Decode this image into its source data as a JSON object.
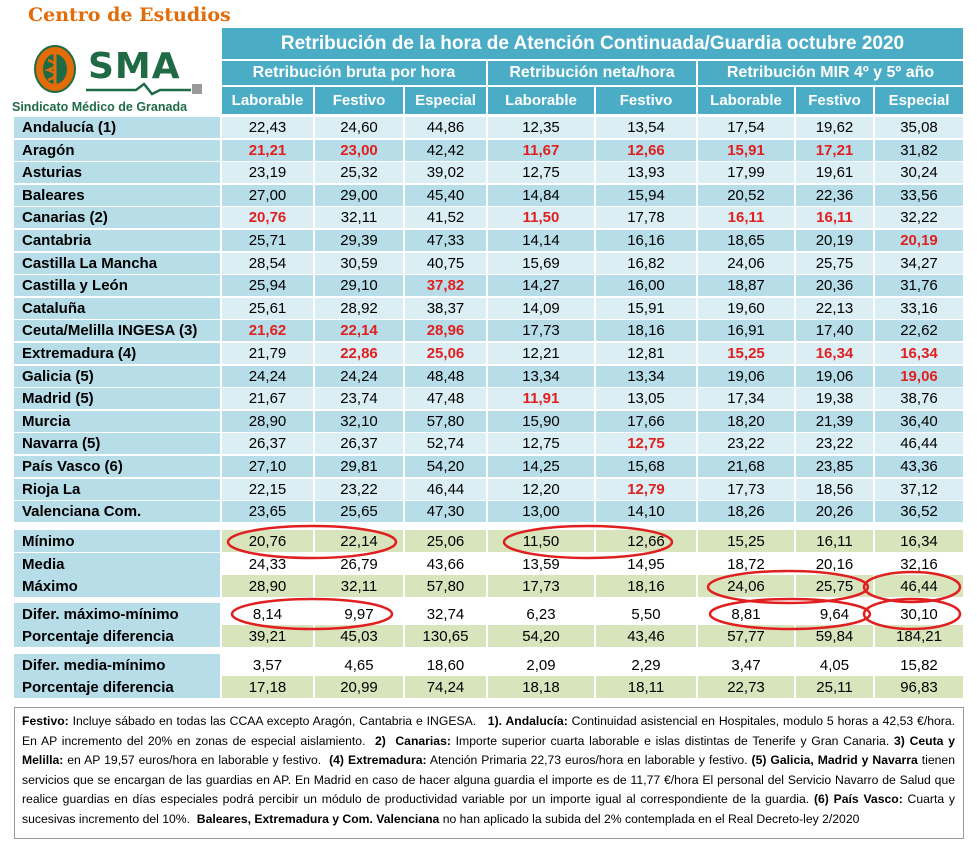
{
  "logo": {
    "title": "Centro de Estudios",
    "acronym": "SMA",
    "subtitle": "Sindicato Médico de Granada"
  },
  "header": {
    "title": "Retribución de la hora de Atención Continuada/Guardia octubre 2020",
    "groups": [
      "Retribución bruta por hora",
      "Retribución neta/hora",
      "Retribución MIR 4º y 5º año"
    ],
    "columns": [
      "Laborable",
      "Festivo",
      "Especial",
      "Laborable",
      "Festivo",
      "Laborable",
      "Festivo",
      "Especial"
    ]
  },
  "rows": [
    {
      "name": "Andalucía (1)",
      "values": [
        "22,43",
        "24,60",
        "44,86",
        "12,35",
        "13,54",
        "17,54",
        "19,62",
        "35,08"
      ],
      "red": []
    },
    {
      "name": "Aragón",
      "values": [
        "21,21",
        "23,00",
        "42,42",
        "11,67",
        "12,66",
        "15,91",
        "17,21",
        "31,82"
      ],
      "red": [
        0,
        1,
        3,
        4,
        5,
        6
      ]
    },
    {
      "name": "Asturias",
      "values": [
        "23,19",
        "25,32",
        "39,02",
        "12,75",
        "13,93",
        "17,99",
        "19,61",
        "30,24"
      ],
      "red": []
    },
    {
      "name": "Baleares",
      "values": [
        "27,00",
        "29,00",
        "45,40",
        "14,84",
        "15,94",
        "20,52",
        "22,36",
        "33,56"
      ],
      "red": []
    },
    {
      "name": "Canarias (2)",
      "values": [
        "20,76",
        "32,11",
        "41,52",
        "11,50",
        "17,78",
        "16,11",
        "16,11",
        "32,22"
      ],
      "red": [
        0,
        3,
        5,
        6
      ]
    },
    {
      "name": "Cantabria",
      "values": [
        "25,71",
        "29,39",
        "47,33",
        "14,14",
        "16,16",
        "18,65",
        "20,19",
        "20,19"
      ],
      "red": [
        7
      ]
    },
    {
      "name": "Castilla La Mancha",
      "values": [
        "28,54",
        "30,59",
        "40,75",
        "15,69",
        "16,82",
        "24,06",
        "25,75",
        "34,27"
      ],
      "red": []
    },
    {
      "name": "Castilla y León",
      "values": [
        "25,94",
        "29,10",
        "37,82",
        "14,27",
        "16,00",
        "18,87",
        "20,36",
        "31,76"
      ],
      "red": [
        2
      ]
    },
    {
      "name": "Cataluña",
      "values": [
        "25,61",
        "28,92",
        "38,37",
        "14,09",
        "15,91",
        "19,60",
        "22,13",
        "33,16"
      ],
      "red": []
    },
    {
      "name": "Ceuta/Melilla INGESA (3)",
      "values": [
        "21,62",
        "22,14",
        "28,96",
        "17,73",
        "18,16",
        "16,91",
        "17,40",
        "22,62"
      ],
      "red": [
        0,
        1,
        2
      ]
    },
    {
      "name": "Extremadura (4)",
      "values": [
        "21,79",
        "22,86",
        "25,06",
        "12,21",
        "12,81",
        "15,25",
        "16,34",
        "16,34"
      ],
      "red": [
        1,
        2,
        5,
        6,
        7
      ]
    },
    {
      "name": "Galicia (5)",
      "values": [
        "24,24",
        "24,24",
        "48,48",
        "13,34",
        "13,34",
        "19,06",
        "19,06",
        "19,06"
      ],
      "red": [
        7
      ]
    },
    {
      "name": "Madrid (5)",
      "values": [
        "21,67",
        "23,74",
        "47,48",
        "11,91",
        "13,05",
        "17,34",
        "19,38",
        "38,76"
      ],
      "red": [
        3
      ]
    },
    {
      "name": "Murcia",
      "values": [
        "28,90",
        "32,10",
        "57,80",
        "15,90",
        "17,66",
        "18,20",
        "21,39",
        "36,40"
      ],
      "red": []
    },
    {
      "name": "Navarra (5)",
      "values": [
        "26,37",
        "26,37",
        "52,74",
        "12,75",
        "12,75",
        "23,22",
        "23,22",
        "46,44"
      ],
      "red": [
        4
      ]
    },
    {
      "name": "País Vasco (6)",
      "values": [
        "27,10",
        "29,81",
        "54,20",
        "14,25",
        "15,68",
        "21,68",
        "23,85",
        "43,36"
      ],
      "red": []
    },
    {
      "name": "Rioja La",
      "values": [
        "22,15",
        "23,22",
        "46,44",
        "12,20",
        "12,79",
        "17,73",
        "18,56",
        "37,12"
      ],
      "red": [
        4
      ]
    },
    {
      "name": "Valenciana Com.",
      "values": [
        "23,65",
        "25,65",
        "47,30",
        "13,00",
        "14,10",
        "18,26",
        "20,26",
        "36,52"
      ],
      "red": []
    }
  ],
  "summary": [
    {
      "name": "Mínimo",
      "values": [
        "20,76",
        "22,14",
        "25,06",
        "11,50",
        "12,66",
        "15,25",
        "16,11",
        "16,34"
      ]
    },
    {
      "name": "Media",
      "values": [
        "24,33",
        "26,79",
        "43,66",
        "13,59",
        "14,95",
        "18,72",
        "20,16",
        "32,16"
      ]
    },
    {
      "name": "Máximo",
      "values": [
        "28,90",
        "32,11",
        "57,80",
        "17,73",
        "18,16",
        "24,06",
        "25,75",
        "46,44"
      ]
    },
    {
      "name": "Difer. máximo-mínimo",
      "values": [
        "8,14",
        "9,97",
        "32,74",
        "6,23",
        "5,50",
        "8,81",
        "9,64",
        "30,10"
      ]
    },
    {
      "name": "Porcentaje diferencia",
      "values": [
        "39,21",
        "45,03",
        "130,65",
        "54,20",
        "43,46",
        "57,77",
        "59,84",
        "184,21"
      ]
    },
    {
      "name": "Difer. media-mínimo",
      "values": [
        "3,57",
        "4,65",
        "18,60",
        "2,09",
        "2,29",
        "3,47",
        "4,05",
        "15,82"
      ]
    },
    {
      "name": "Porcentaje diferencia",
      "values": [
        "17,18",
        "20,99",
        "74,24",
        "18,18",
        "18,11",
        "22,73",
        "25,11",
        "96,83"
      ]
    }
  ],
  "notes": {
    "html": "<b>Festivo:</b> Incluye sábado en todas las CCAA excepto Aragón, Cantabria e INGESA.&nbsp;&nbsp;&nbsp;<b>1). Andalucía:</b> Continuidad asistencial en Hospitales, modulo 5 horas a 42,53 €/hora. En AP incremento del 20% en zonas de especial aislamiento.&nbsp;&nbsp;<b>2)</b>&nbsp;&nbsp;<b>Canarias:</b> Importe superior cuarta laborable e islas distintas de Tenerife y Gran Canaria. <b>3) Ceuta y Melilla:</b> en AP 19,57 euros/hora en laborable y festivo.&nbsp;&nbsp;<b>(4) Extremadura:</b> Atención Primaria 22,73 euros/hora en laborable y festivo. <b>(5) Galicia, Madrid y Navarra</b> tienen servicios que se encargan de las guardias en AP. En Madrid en caso de hacer alguna guardia el importe es de 11,77 €/hora El personal del Servicio Navarro de Salud que realice guardias en días especiales podrá percibir un módulo de productividad variable por un importe igual al correspondiente de la guardia. <b>(6) País Vasco:</b> Cuarta y sucesivas incremento del 10%.&nbsp;&nbsp;<b>Baleares, Extremadura y Com. Valenciana</b> no han aplicado la subida del 2% contemplada en el Real Decreto-ley 2/2020"
  },
  "colors": {
    "header": "#4bacc6",
    "row_light": "#daeef3",
    "row_mid": "#b7dde8",
    "summary_band": "#d8e4bc",
    "red_value": "#e02020",
    "circle": "#e02020"
  }
}
